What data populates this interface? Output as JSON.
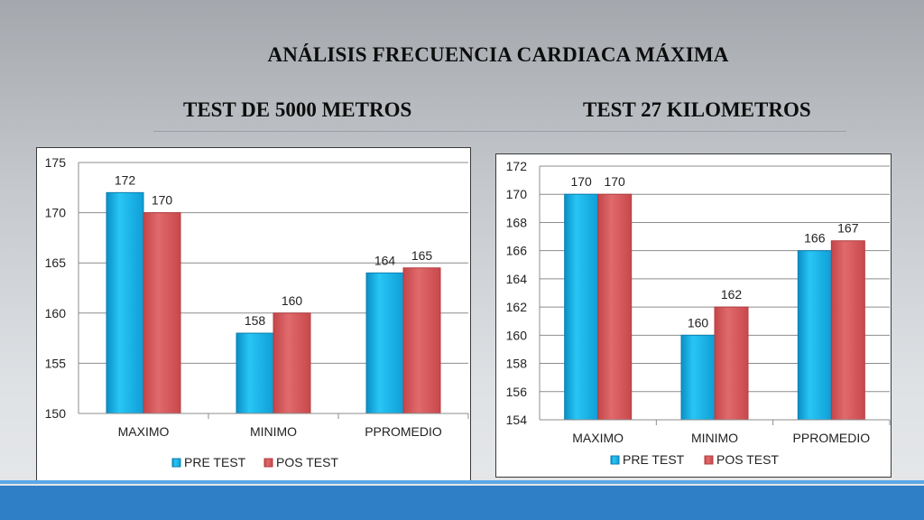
{
  "page": {
    "title": "ANÁLISIS FRECUENCIA CARDIACA MÁXIMA",
    "subtitle_left": "TEST DE 5000 METROS",
    "subtitle_right": "TEST 27 KILOMETROS"
  },
  "colors": {
    "pre_test": "#1fb8ea",
    "pos_test": "#d9575a"
  },
  "chart_data": [
    {
      "type": "bar",
      "title": "TEST DE 5000 METROS",
      "categories": [
        "MAXIMO",
        "MINIMO",
        "PPROMEDIO"
      ],
      "series": [
        {
          "name": "PRE TEST",
          "values": [
            172,
            158,
            164
          ],
          "labels": [
            "172",
            "158",
            "164"
          ]
        },
        {
          "name": "POS TEST",
          "values": [
            170,
            160,
            164.5
          ],
          "labels": [
            "170",
            "160",
            "165"
          ]
        }
      ],
      "ylim": [
        150,
        175
      ],
      "yticks": [
        "150",
        "155",
        "160",
        "165",
        "170",
        "175"
      ],
      "ytick_values": [
        150,
        155,
        160,
        165,
        170,
        175
      ],
      "grid": true,
      "legend": "bottom"
    },
    {
      "type": "bar",
      "title": "TEST 27 KILOMETROS",
      "categories": [
        "MAXIMO",
        "MINIMO",
        "PPROMEDIO"
      ],
      "series": [
        {
          "name": "PRE TEST",
          "values": [
            170,
            160,
            166
          ],
          "labels": [
            "170",
            "160",
            "166"
          ]
        },
        {
          "name": "POS TEST",
          "values": [
            170,
            162,
            166.7
          ],
          "labels": [
            "170",
            "162",
            "167"
          ]
        }
      ],
      "ylim": [
        154,
        172
      ],
      "yticks": [
        "154",
        "156",
        "158",
        "160",
        "162",
        "164",
        "166",
        "168",
        "170",
        "172"
      ],
      "ytick_values": [
        154,
        156,
        158,
        160,
        162,
        164,
        166,
        168,
        170,
        172
      ],
      "grid": true,
      "legend": "bottom"
    }
  ]
}
